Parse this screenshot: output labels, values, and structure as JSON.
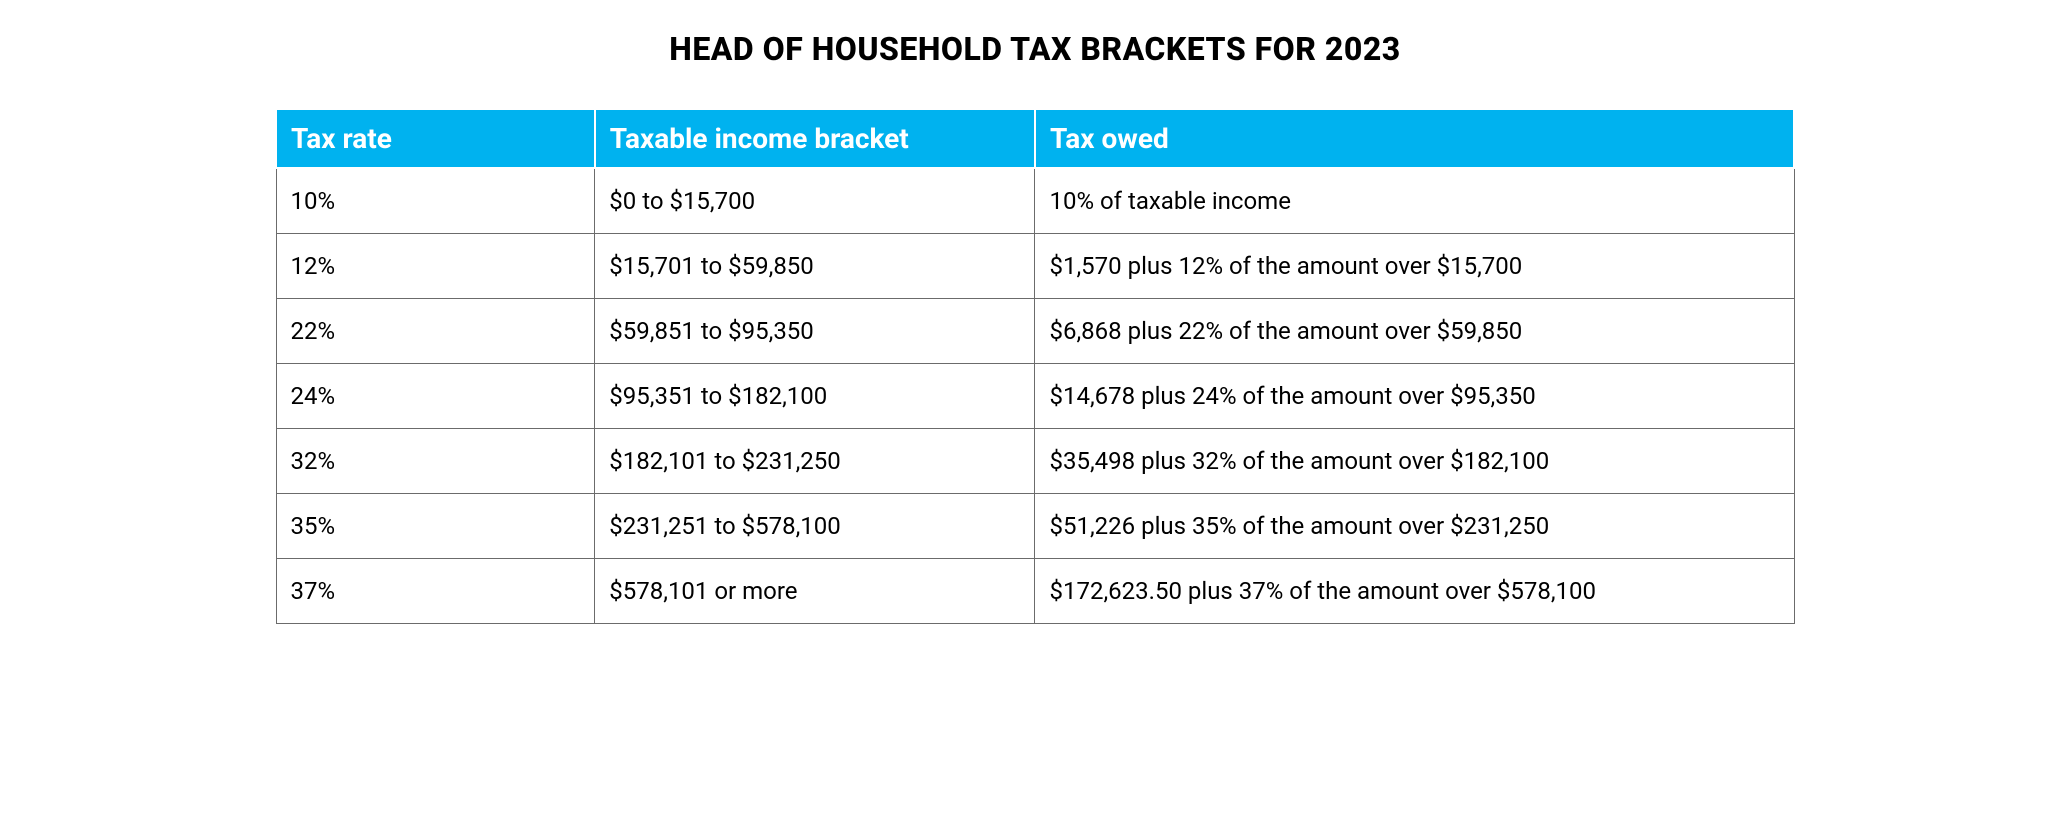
{
  "title": "HEAD OF HOUSEHOLD TAX BRACKETS FOR 2023",
  "table": {
    "type": "table",
    "header_bg": "#00b2ef",
    "header_fg": "#ffffff",
    "header_fontsize": 28,
    "header_fontweight": 700,
    "cell_fontsize": 24,
    "cell_fg": "#000000",
    "cell_bg": "#ffffff",
    "border_color": "#6b6b6b",
    "header_border_color": "#ffffff",
    "columns": [
      {
        "key": "rate",
        "label": "Tax rate",
        "width_pct": 21,
        "align": "left"
      },
      {
        "key": "bracket",
        "label": "Taxable income bracket",
        "width_pct": 29,
        "align": "left"
      },
      {
        "key": "owed",
        "label": "Tax owed",
        "width_pct": 50,
        "align": "left"
      }
    ],
    "rows": [
      {
        "rate": "10%",
        "bracket": "$0 to $15,700",
        "owed": "10% of taxable income"
      },
      {
        "rate": "12%",
        "bracket": "$15,701 to $59,850",
        "owed": "$1,570 plus 12% of the amount over $15,700"
      },
      {
        "rate": "22%",
        "bracket": "$59,851 to $95,350",
        "owed": "$6,868 plus 22% of the amount over $59,850"
      },
      {
        "rate": "24%",
        "bracket": "$95,351 to $182,100",
        "owed": "$14,678 plus 24% of the amount over $95,350"
      },
      {
        "rate": "32%",
        "bracket": "$182,101 to $231,250",
        "owed": "$35,498 plus 32% of the amount over $182,100"
      },
      {
        "rate": "35%",
        "bracket": "$231,251 to $578,100",
        "owed": "$51,226 plus 35% of the amount over $231,250"
      },
      {
        "rate": "37%",
        "bracket": "$578,101 or more",
        "owed": "$172,623.50 plus 37% of the amount over $578,100"
      }
    ]
  },
  "title_style": {
    "fontsize": 32,
    "fontweight": 800,
    "color": "#000000",
    "align": "center"
  }
}
